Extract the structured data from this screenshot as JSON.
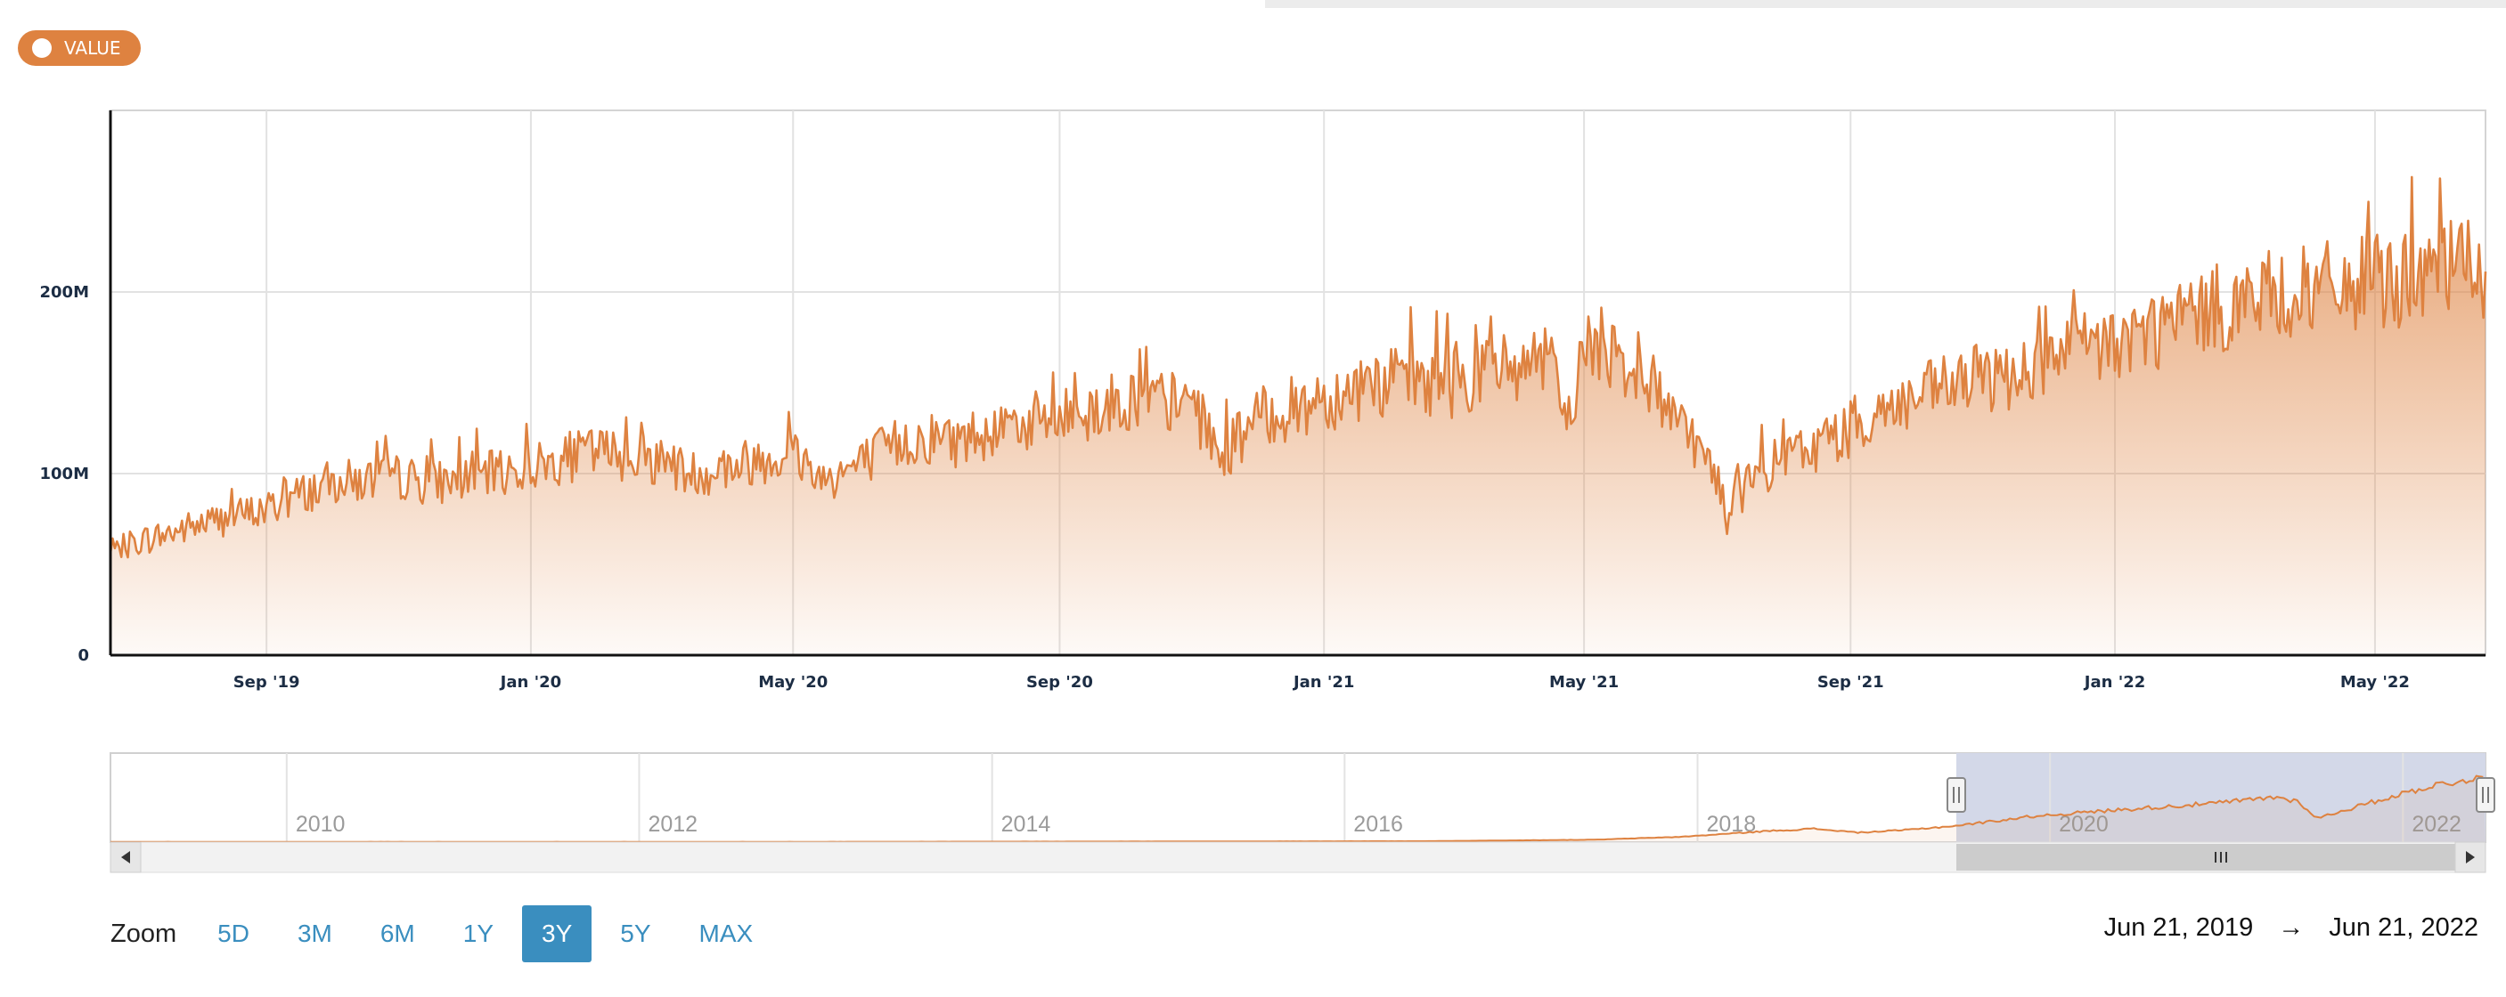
{
  "legend": {
    "label": "VALUE"
  },
  "colors": {
    "series": "#de8240",
    "zoom_active": "#3a8ebf",
    "navigator_selection": "#d3d8e8"
  },
  "chart_data": {
    "type": "area",
    "series": [
      {
        "name": "VALUE",
        "color": "#de8240",
        "points": [
          [
            "2019-06-21",
            55
          ],
          [
            "2019-07-01",
            62
          ],
          [
            "2019-07-15",
            66
          ],
          [
            "2019-08-01",
            72
          ],
          [
            "2019-08-15",
            76
          ],
          [
            "2019-09-01",
            80
          ],
          [
            "2019-09-15",
            88
          ],
          [
            "2019-10-01",
            95
          ],
          [
            "2019-10-15",
            96
          ],
          [
            "2019-11-01",
            98
          ],
          [
            "2019-11-15",
            95
          ],
          [
            "2019-12-01",
            97
          ],
          [
            "2019-12-15",
            100
          ],
          [
            "2020-01-01",
            103
          ],
          [
            "2020-01-15",
            108
          ],
          [
            "2020-02-01",
            112
          ],
          [
            "2020-02-15",
            110
          ],
          [
            "2020-03-01",
            107
          ],
          [
            "2020-03-15",
            100
          ],
          [
            "2020-04-01",
            103
          ],
          [
            "2020-04-15",
            108
          ],
          [
            "2020-05-01",
            112
          ],
          [
            "2020-05-15",
            97
          ],
          [
            "2020-06-01",
            105
          ],
          [
            "2020-06-15",
            115
          ],
          [
            "2020-07-01",
            120
          ],
          [
            "2020-07-15",
            118
          ],
          [
            "2020-08-01",
            125
          ],
          [
            "2020-08-15",
            128
          ],
          [
            "2020-09-01",
            130
          ],
          [
            "2020-09-15",
            135
          ],
          [
            "2020-10-01",
            140
          ],
          [
            "2020-10-15",
            140
          ],
          [
            "2020-11-01",
            137
          ],
          [
            "2020-11-15",
            110
          ],
          [
            "2020-12-01",
            130
          ],
          [
            "2020-12-15",
            135
          ],
          [
            "2021-01-01",
            140
          ],
          [
            "2021-01-15",
            148
          ],
          [
            "2021-02-01",
            150
          ],
          [
            "2021-02-15",
            152
          ],
          [
            "2021-03-01",
            150
          ],
          [
            "2021-03-15",
            155
          ],
          [
            "2021-04-01",
            160
          ],
          [
            "2021-04-15",
            160
          ],
          [
            "2021-04-24",
            128
          ],
          [
            "2021-05-01",
            172
          ],
          [
            "2021-05-15",
            168
          ],
          [
            "2021-06-01",
            148
          ],
          [
            "2021-06-15",
            130
          ],
          [
            "2021-07-01",
            98
          ],
          [
            "2021-07-06",
            75
          ],
          [
            "2021-07-15",
            95
          ],
          [
            "2021-08-01",
            108
          ],
          [
            "2021-08-15",
            115
          ],
          [
            "2021-09-01",
            125
          ],
          [
            "2021-09-15",
            135
          ],
          [
            "2021-10-01",
            140
          ],
          [
            "2021-10-15",
            148
          ],
          [
            "2021-11-01",
            152
          ],
          [
            "2021-11-15",
            155
          ],
          [
            "2021-12-01",
            160
          ],
          [
            "2021-12-15",
            168
          ],
          [
            "2022-01-01",
            172
          ],
          [
            "2022-01-15",
            178
          ],
          [
            "2022-02-01",
            185
          ],
          [
            "2022-02-15",
            190
          ],
          [
            "2022-03-01",
            195
          ],
          [
            "2022-03-15",
            198
          ],
          [
            "2022-04-01",
            200
          ],
          [
            "2022-04-15",
            203
          ],
          [
            "2022-05-01",
            205
          ],
          [
            "2022-05-15",
            208
          ],
          [
            "2022-06-01",
            210
          ],
          [
            "2022-06-15",
            218
          ],
          [
            "2022-06-21",
            205
          ]
        ]
      }
    ],
    "x_range": [
      "2019-06-21",
      "2022-06-21"
    ],
    "x_ticks": [
      "Sep '19",
      "Jan '20",
      "May '20",
      "Sep '20",
      "Jan '21",
      "May '21",
      "Sep '21",
      "Jan '22",
      "May '22"
    ],
    "y_ticks": [
      "0",
      "100M",
      "200M"
    ],
    "ylim": [
      0,
      300
    ],
    "y_unit": "M",
    "grid": true,
    "navigator": {
      "x_range": [
        "2009-01-01",
        "2022-06-21"
      ],
      "ticks": [
        "2010",
        "2012",
        "2014",
        "2016",
        "2018",
        "2020",
        "2022"
      ],
      "ylim": [
        0,
        300
      ],
      "selection": [
        "2019-06-21",
        "2022-06-21"
      ],
      "points": [
        [
          "2009-01-01",
          1
        ],
        [
          "2011-01-01",
          1
        ],
        [
          "2013-01-01",
          1
        ],
        [
          "2015-01-01",
          2
        ],
        [
          "2016-06-01",
          3
        ],
        [
          "2017-06-01",
          8
        ],
        [
          "2017-12-01",
          18
        ],
        [
          "2018-06-01",
          38
        ],
        [
          "2018-09-01",
          45
        ],
        [
          "2018-12-01",
          32
        ],
        [
          "2019-03-01",
          40
        ],
        [
          "2019-06-21",
          55
        ],
        [
          "2019-12-01",
          88
        ],
        [
          "2020-06-01",
          110
        ],
        [
          "2020-12-01",
          130
        ],
        [
          "2021-04-15",
          152
        ],
        [
          "2021-06-01",
          135
        ],
        [
          "2021-07-06",
          80
        ],
        [
          "2021-12-01",
          150
        ],
        [
          "2022-03-01",
          190
        ],
        [
          "2022-05-01",
          205
        ],
        [
          "2022-06-10",
          222
        ],
        [
          "2022-06-21",
          200
        ]
      ]
    }
  },
  "zoom": {
    "label": "Zoom",
    "options": [
      "5D",
      "3M",
      "6M",
      "1Y",
      "3Y",
      "5Y",
      "MAX"
    ],
    "active": "3Y"
  },
  "range": {
    "from": "Jun 21, 2019",
    "arrow": "→",
    "to": "Jun 21, 2022"
  }
}
